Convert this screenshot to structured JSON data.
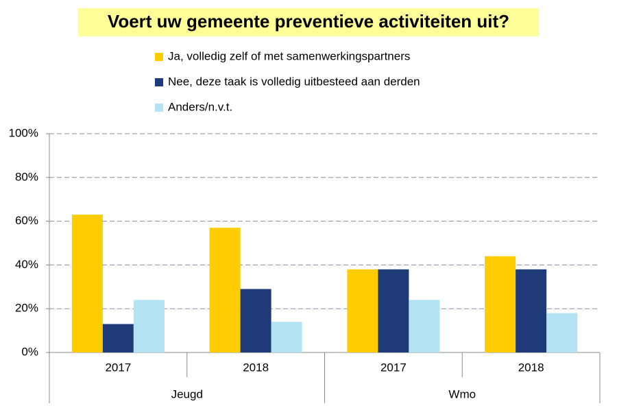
{
  "chart_data": {
    "type": "bar",
    "title": "Voert uw gemeente preventieve activiteiten uit?",
    "groups": [
      {
        "name": "Jeugd",
        "categories": [
          "2017",
          "2018"
        ]
      },
      {
        "name": "Wmo",
        "categories": [
          "2017",
          "2018"
        ]
      }
    ],
    "series": [
      {
        "name": "Ja, volledig zelf of met samenwerkingspartners",
        "color": "#FFCC00",
        "values": [
          63,
          57,
          38,
          44
        ]
      },
      {
        "name": "Nee, deze taak is volledig uitbesteed aan derden",
        "color": "#1F3A78",
        "values": [
          13,
          29,
          38,
          38
        ]
      },
      {
        "name": "Anders/n.v.t.",
        "color": "#B4E3F3",
        "values": [
          24,
          14,
          24,
          18
        ]
      }
    ],
    "ylim": [
      0,
      100
    ],
    "yticks": [
      {
        "value": 0,
        "label": "0%"
      },
      {
        "value": 20,
        "label": "20%"
      },
      {
        "value": 40,
        "label": "40%"
      },
      {
        "value": 60,
        "label": "60%"
      },
      {
        "value": 80,
        "label": "80%"
      },
      {
        "value": 100,
        "label": "100%"
      }
    ],
    "grid": true,
    "legend": "top"
  }
}
